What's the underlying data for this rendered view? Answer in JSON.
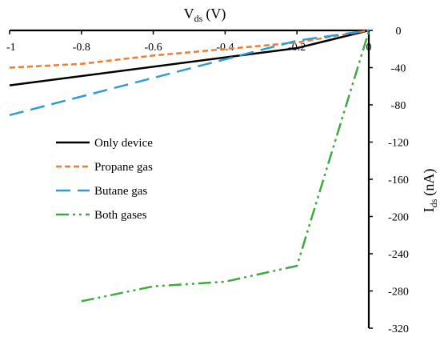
{
  "chart_data": {
    "type": "line",
    "title": "",
    "xlabel": {
      "main": "V",
      "sub": "ds",
      "unit": "(V)"
    },
    "ylabel": {
      "main": "I",
      "sub": "ds",
      "unit": "(nA)"
    },
    "xlim": [
      -1,
      0
    ],
    "ylim": [
      -320,
      0
    ],
    "x_ticks": [
      -1,
      -0.8,
      -0.6,
      -0.4,
      -0.2,
      0
    ],
    "x_tick_labels": [
      "-1",
      "-0.8",
      "-0.6",
      "-0.4",
      "-0.2",
      "0"
    ],
    "y_ticks": [
      0,
      -40,
      -80,
      -120,
      -160,
      -200,
      -240,
      -280,
      -320
    ],
    "y_tick_labels": [
      "0",
      "-40",
      "-80",
      "-120",
      "-160",
      "-200",
      "-240",
      "-280",
      "-320"
    ],
    "grid": false,
    "legend_position": "left",
    "series": [
      {
        "name": "Only device",
        "color": "#000000",
        "dash": "solid",
        "x": [
          -1,
          -0.2,
          0
        ],
        "y": [
          -59,
          -19,
          0
        ]
      },
      {
        "name": "Propane gas",
        "color": "#ED7D31",
        "dash": "short-dash",
        "x": [
          -1,
          -0.8,
          -0.6,
          -0.4,
          -0.2,
          0
        ],
        "y": [
          -40,
          -36,
          -27,
          -20,
          -13,
          0
        ]
      },
      {
        "name": "Butane gas",
        "color": "#2E9BD6",
        "dash": "long-dash",
        "x": [
          -1,
          -0.2,
          0
        ],
        "y": [
          -91,
          -11,
          0
        ]
      },
      {
        "name": "Both gases",
        "color": "#3DAA3D",
        "dash": "dash-dot-dot",
        "x": [
          -0.8,
          -0.6,
          -0.4,
          -0.2,
          0
        ],
        "y": [
          -291,
          -275,
          -270,
          -253,
          -1
        ]
      }
    ]
  }
}
